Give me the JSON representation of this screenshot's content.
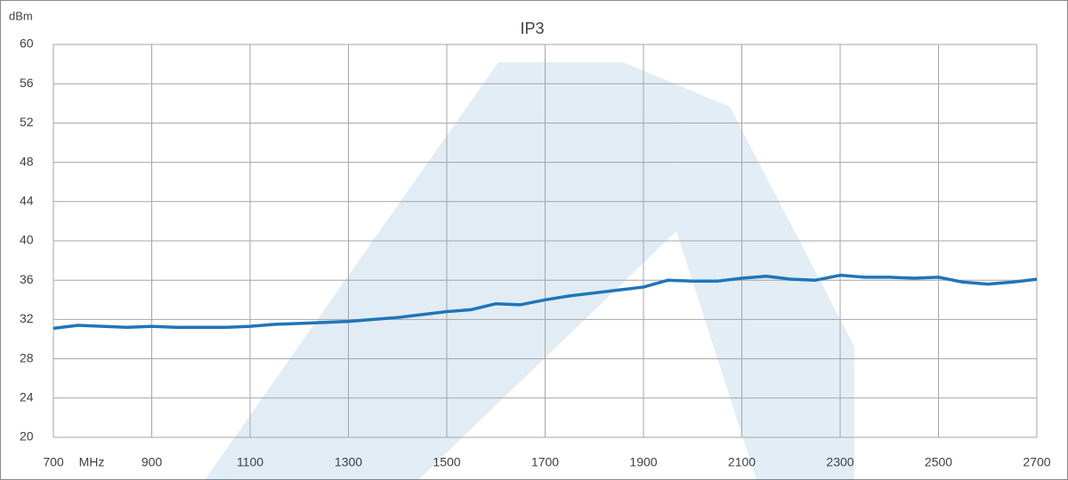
{
  "chart_data": {
    "type": "line",
    "title": "IP3",
    "y_label": "dBm",
    "x_label": "MHz",
    "x": [
      700,
      750,
      800,
      850,
      900,
      950,
      1000,
      1050,
      1100,
      1150,
      1200,
      1250,
      1300,
      1350,
      1400,
      1450,
      1500,
      1550,
      1600,
      1650,
      1700,
      1750,
      1800,
      1850,
      1900,
      1950,
      2000,
      2050,
      2100,
      2150,
      2200,
      2250,
      2300,
      2350,
      2400,
      2450,
      2500,
      2550,
      2600,
      2650,
      2700
    ],
    "series": [
      {
        "name": "IP3",
        "color": "#1f75b8",
        "values": [
          31.1,
          31.4,
          31.3,
          31.2,
          31.3,
          31.2,
          31.2,
          31.2,
          31.3,
          31.5,
          31.6,
          31.7,
          31.8,
          32.0,
          32.2,
          32.5,
          32.8,
          33.0,
          33.6,
          33.5,
          34.0,
          34.4,
          34.7,
          35.0,
          35.3,
          36.0,
          35.9,
          35.9,
          36.2,
          36.4,
          36.1,
          36.0,
          36.5,
          36.3,
          36.3,
          36.2,
          36.3,
          35.8,
          35.6,
          35.8,
          36.1
        ]
      }
    ],
    "xlim": [
      700,
      2700
    ],
    "xticks": [
      700,
      900,
      1100,
      1300,
      1500,
      1700,
      1900,
      2100,
      2300,
      2500,
      2700
    ],
    "ylim": [
      20,
      60
    ],
    "yticks": [
      20,
      24,
      28,
      32,
      36,
      40,
      44,
      48,
      52,
      56,
      60
    ],
    "grid": true
  }
}
